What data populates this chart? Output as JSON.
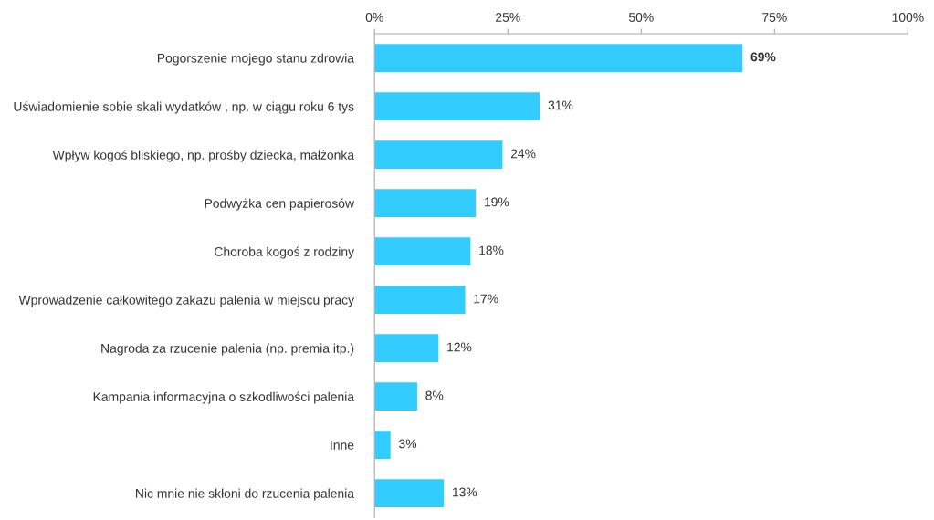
{
  "chart_data": {
    "type": "bar",
    "orientation": "horizontal",
    "categories": [
      "Pogorszenie mojego stanu zdrowia",
      "Uświadomienie sobie skali wydatków , np. w ciągu roku 6 tys",
      "Wpływ kogoś bliskiego, np. prośby dziecka, małżonka",
      "Podwyżka cen papierosów",
      "Choroba kogoś z rodziny",
      "Wprowadzenie całkowitego zakazu palenia w miejscu pracy",
      "Nagroda za rzucenie palenia (np. premia itp.)",
      "Kampania informacyjna o szkodliwości palenia",
      "Inne",
      "Nic mnie nie skłoni do rzucenia palenia"
    ],
    "values": [
      69,
      31,
      24,
      19,
      18,
      17,
      12,
      8,
      3,
      13
    ],
    "value_labels": [
      "69%",
      "31%",
      "24%",
      "19%",
      "18%",
      "17%",
      "12%",
      "8%",
      "3%",
      "13%"
    ],
    "color": "#33ccff",
    "xlim": [
      0,
      100
    ],
    "xticks": [
      {
        "value": 0,
        "label": "0%"
      },
      {
        "value": 25,
        "label": "25%"
      },
      {
        "value": 50,
        "label": "50%"
      },
      {
        "value": 75,
        "label": "75%"
      },
      {
        "value": 100,
        "label": "100%"
      }
    ],
    "grid": false,
    "legend": false
  }
}
